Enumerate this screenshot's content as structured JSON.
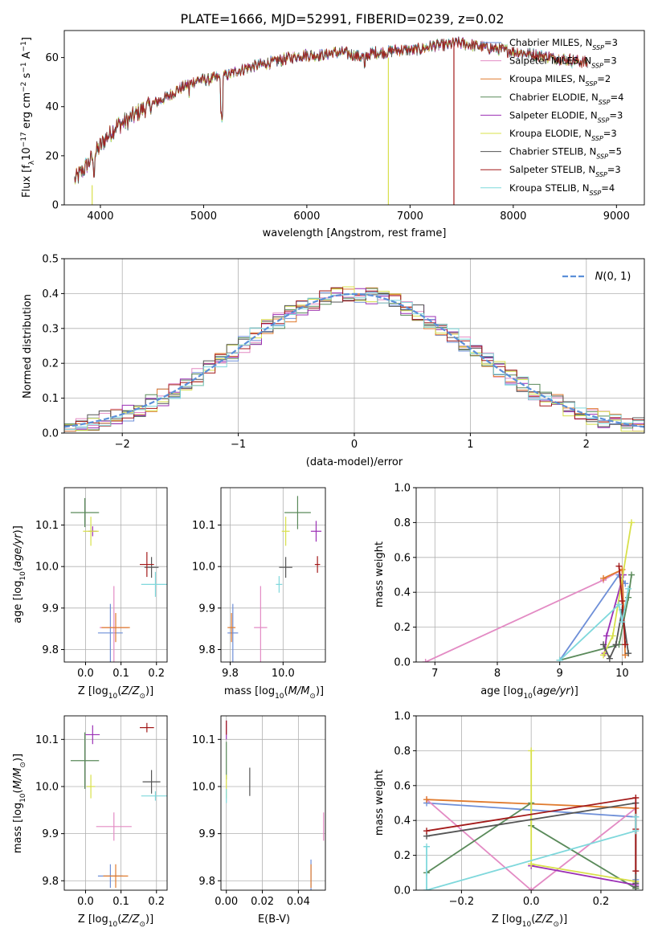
{
  "title": "PLATE=1666, MJD=52991, FIBERID=0239, z=0.02",
  "colors": {
    "Chabrier MILES": "#6e8fd8",
    "Salpeter MILES": "#e38bc4",
    "Kroupa MILES": "#e07b2e",
    "Chabrier ELODIE": "#5a8a5a",
    "Salpeter ELODIE": "#9b2fb5",
    "Kroupa ELODIE": "#d8e04a",
    "Chabrier STELIB": "#555555",
    "Salpeter STELIB": "#a31a1a",
    "Kroupa STELIB": "#7fd8dc",
    "normal_curve": "#5b8fd8",
    "grid": "#b0b0b0"
  },
  "chart_data": [
    {
      "type": "line",
      "id": "spectrum",
      "xlabel": "wavelength [Angstrom, rest frame]",
      "ylabel": "Flux [f_λ10^-17 erg cm^-2 s^-1 A^-1]",
      "xlim": [
        3650,
        9270
      ],
      "ylim": [
        0,
        71
      ],
      "xticks": [
        4000,
        5000,
        6000,
        7000,
        8000,
        9000
      ],
      "yticks": [
        0,
        20,
        40,
        60
      ],
      "continuum_x": [
        3750,
        3850,
        3950,
        4050,
        4150,
        4250,
        4350,
        4450,
        4550,
        4650,
        4750,
        4850,
        4950,
        5050,
        5150,
        5250,
        5350,
        5450,
        5550,
        5650,
        5750,
        5850,
        5950,
        6050,
        6150,
        6250,
        6350,
        6450,
        6550,
        6650,
        6750,
        6850,
        6950,
        7050,
        7150,
        7250,
        7350,
        7450
      ],
      "continuum_y": [
        10,
        15,
        21,
        27,
        32,
        34,
        37,
        40,
        42,
        44,
        47,
        49,
        51,
        51,
        52,
        53,
        55,
        56,
        57,
        58,
        59,
        60,
        61,
        61,
        61,
        62,
        62,
        61,
        60,
        62,
        62,
        63,
        63,
        63,
        64,
        65,
        65,
        66
      ],
      "drops": [
        {
          "series": "Kroupa ELODIE",
          "x": 3920,
          "from": 8,
          "to": 0
        },
        {
          "series": "Kroupa ELODIE",
          "x": 6790,
          "from": 60,
          "to": 0
        },
        {
          "series": "Salpeter STELIB",
          "x": 7425,
          "from": 66,
          "to": 0
        }
      ],
      "legend": {
        "placement": "right",
        "entries": [
          {
            "label": "Chabrier MILES, N",
            "sub": "SSP",
            "rest": "=3"
          },
          {
            "label": "Salpeter MILES, N",
            "sub": "SSP",
            "rest": "=3"
          },
          {
            "label": "Kroupa MILES, N",
            "sub": "SSP",
            "rest": "=2"
          },
          {
            "label": "Chabrier ELODIE, N",
            "sub": "SSP",
            "rest": "=4"
          },
          {
            "label": "Salpeter ELODIE, N",
            "sub": "SSP",
            "rest": "=3"
          },
          {
            "label": "Kroupa ELODIE, N",
            "sub": "SSP",
            "rest": "=3"
          },
          {
            "label": "Chabrier STELIB, N",
            "sub": "SSP",
            "rest": "=5"
          },
          {
            "label": "Salpeter STELIB, N",
            "sub": "SSP",
            "rest": "=3"
          },
          {
            "label": "Kroupa STELIB, N",
            "sub": "SSP",
            "rest": "=4"
          }
        ]
      }
    },
    {
      "type": "histogram",
      "id": "residuals",
      "xlabel": "(data-model)/error",
      "ylabel": "Normed distribution",
      "xlim": [
        -2.5,
        2.5
      ],
      "ylim": [
        0,
        0.5
      ],
      "xticks": [
        -2,
        -1,
        0,
        1,
        2
      ],
      "yticks": [
        0.0,
        0.1,
        0.2,
        0.3,
        0.4,
        0.5
      ],
      "legend": {
        "label": "N(0,1)",
        "placement": "upper right"
      },
      "bin_width": 0.1
    },
    {
      "type": "errorbar",
      "id": "age_vs_Z",
      "xlabel": "Z [log10(Z/Z⊙)]",
      "ylabel": "age [log10(age/yr)]",
      "xlim": [
        -0.06,
        0.23
      ],
      "ylim": [
        9.77,
        10.19
      ],
      "xticks": [
        0.0,
        0.1,
        0.2
      ],
      "yticks": [
        9.8,
        9.9,
        10.0,
        10.1
      ],
      "points": [
        {
          "series": "Chabrier MILES",
          "x": 0.07,
          "y": 9.84,
          "xerr": 0.035,
          "yerr": 0.07
        },
        {
          "series": "Salpeter MILES",
          "x": 0.08,
          "y": 9.853,
          "xerr": 0.04,
          "yerr": 0.1
        },
        {
          "series": "Kroupa MILES",
          "x": 0.085,
          "y": 9.853,
          "xerr": 0.04,
          "yerr": 0.035
        },
        {
          "series": "Chabrier ELODIE",
          "x": -0.002,
          "y": 10.13,
          "xerr": 0.04,
          "yerr": 0.035
        },
        {
          "series": "Salpeter ELODIE",
          "x": 0.02,
          "y": 10.085,
          "xerr": 0.012,
          "yerr": 0.012
        },
        {
          "series": "Kroupa ELODIE",
          "x": 0.015,
          "y": 10.085,
          "xerr": 0.022,
          "yerr": 0.035
        },
        {
          "series": "Chabrier STELIB",
          "x": 0.186,
          "y": 9.998,
          "xerr": 0.02,
          "yerr": 0.025
        },
        {
          "series": "Salpeter STELIB",
          "x": 0.173,
          "y": 10.005,
          "xerr": 0.02,
          "yerr": 0.03
        },
        {
          "series": "Kroupa STELIB",
          "x": 0.197,
          "y": 9.957,
          "xerr": 0.04,
          "yerr": 0.03
        }
      ]
    },
    {
      "type": "errorbar",
      "id": "age_vs_mass",
      "xlabel": "mass [log10(M/M⊙)]",
      "ylabel": "",
      "xlim": [
        9.765,
        10.16
      ],
      "ylim": [
        9.77,
        10.19
      ],
      "xticks": [
        9.8,
        10.0
      ],
      "yticks": [
        9.8,
        9.9,
        10.0,
        10.1
      ],
      "points": [
        {
          "series": "Chabrier MILES",
          "x": 9.81,
          "y": 9.84,
          "xerr": 0.02,
          "yerr": 0.07
        },
        {
          "series": "Salpeter MILES",
          "x": 9.915,
          "y": 9.853,
          "xerr": 0.025,
          "yerr": 0.1
        },
        {
          "series": "Kroupa MILES",
          "x": 9.805,
          "y": 9.853,
          "xerr": 0.015,
          "yerr": 0.035
        },
        {
          "series": "Chabrier ELODIE",
          "x": 10.055,
          "y": 10.13,
          "xerr": 0.05,
          "yerr": 0.04
        },
        {
          "series": "Salpeter ELODIE",
          "x": 10.125,
          "y": 10.085,
          "xerr": 0.02,
          "yerr": 0.025
        },
        {
          "series": "Kroupa ELODIE",
          "x": 10.01,
          "y": 10.085,
          "xerr": 0.015,
          "yerr": 0.035
        },
        {
          "series": "Chabrier STELIB",
          "x": 10.01,
          "y": 9.998,
          "xerr": 0.025,
          "yerr": 0.025
        },
        {
          "series": "Salpeter STELIB",
          "x": 10.13,
          "y": 10.005,
          "xerr": 0.01,
          "yerr": 0.02
        },
        {
          "series": "Kroupa STELIB",
          "x": 9.985,
          "y": 9.957,
          "xerr": 0.012,
          "yerr": 0.02
        }
      ]
    },
    {
      "type": "line",
      "id": "mass_weight_vs_age",
      "xlabel": "age [log10(age/yr)]",
      "ylabel": "mass weight",
      "xlim": [
        6.7,
        10.33
      ],
      "ylim": [
        0,
        1
      ],
      "xticks": [
        7,
        8,
        9,
        10
      ],
      "yticks": [
        0.0,
        0.2,
        0.4,
        0.6,
        0.8,
        1.0
      ],
      "series": [
        {
          "name": "Chabrier MILES",
          "x": [
            9.0,
            9.95,
            10.05
          ],
          "y": [
            0.01,
            0.5,
            0.45
          ]
        },
        {
          "name": "Salpeter MILES",
          "x": [
            6.85,
            9.7,
            10.0
          ],
          "y": [
            0.0,
            0.47,
            0.53
          ]
        },
        {
          "name": "Kroupa MILES",
          "x": [
            9.7,
            10.0,
            10.05
          ],
          "y": [
            0.48,
            0.53,
            0.04
          ]
        },
        {
          "name": "Chabrier ELODIE",
          "x": [
            9.0,
            9.95,
            10.1,
            10.15
          ],
          "y": [
            0.01,
            0.1,
            0.37,
            0.5
          ]
        },
        {
          "name": "Salpeter ELODIE",
          "x": [
            9.72,
            9.75,
            10.02
          ],
          "y": [
            0.05,
            0.15,
            0.5
          ]
        },
        {
          "name": "Kroupa ELODIE",
          "x": [
            9.7,
            9.85,
            10.15
          ],
          "y": [
            0.04,
            0.15,
            0.8
          ]
        },
        {
          "name": "Chabrier STELIB",
          "x": [
            9.7,
            9.8,
            9.9,
            10.0,
            10.1
          ],
          "y": [
            0.1,
            0.02,
            0.1,
            0.3,
            0.05
          ]
        },
        {
          "name": "Salpeter STELIB",
          "x": [
            9.95,
            10.0,
            10.05
          ],
          "y": [
            0.55,
            0.35,
            0.1
          ]
        },
        {
          "name": "Kroupa STELIB",
          "x": [
            9.0,
            9.95,
            10.0,
            10.1
          ],
          "y": [
            0.01,
            0.33,
            0.23,
            0.42
          ]
        }
      ]
    },
    {
      "type": "errorbar",
      "id": "mass_vs_Z",
      "xlabel": "Z [log10(Z/Z⊙)]",
      "ylabel": "mass [log10(M/M⊙)]",
      "xlim": [
        -0.06,
        0.23
      ],
      "ylim": [
        9.78,
        10.15
      ],
      "xticks": [
        0.0,
        0.1,
        0.2
      ],
      "yticks": [
        9.8,
        9.9,
        10.0,
        10.1
      ],
      "points": [
        {
          "series": "Chabrier MILES",
          "x": 0.07,
          "y": 9.81,
          "xerr": 0.035,
          "yerr": 0.025
        },
        {
          "series": "Salpeter MILES",
          "x": 0.08,
          "y": 9.915,
          "xerr": 0.05,
          "yerr": 0.03
        },
        {
          "series": "Kroupa MILES",
          "x": 0.085,
          "y": 9.81,
          "xerr": 0.035,
          "yerr": 0.025
        },
        {
          "series": "Chabrier ELODIE",
          "x": -0.002,
          "y": 10.055,
          "xerr": 0.04,
          "yerr": 0.06
        },
        {
          "series": "Salpeter ELODIE",
          "x": 0.02,
          "y": 10.11,
          "xerr": 0.02,
          "yerr": 0.02
        },
        {
          "series": "Kroupa ELODIE",
          "x": 0.015,
          "y": 10.0,
          "xerr": 0.012,
          "yerr": 0.025
        },
        {
          "series": "Chabrier STELIB",
          "x": 0.186,
          "y": 10.01,
          "xerr": 0.025,
          "yerr": 0.025
        },
        {
          "series": "Salpeter STELIB",
          "x": 0.173,
          "y": 10.125,
          "xerr": 0.02,
          "yerr": 0.01
        },
        {
          "series": "Kroupa STELIB",
          "x": 0.197,
          "y": 9.98,
          "xerr": 0.04,
          "yerr": 0.01
        }
      ]
    },
    {
      "type": "errorbar",
      "id": "mass_vs_ebv",
      "xlabel": "E(B-V)",
      "ylabel": "",
      "xlim": [
        -0.003,
        0.055
      ],
      "ylim": [
        9.78,
        10.15
      ],
      "xticks": [
        0.0,
        0.02,
        0.04
      ],
      "yticks": [
        9.8,
        9.9,
        10.0,
        10.1
      ],
      "points": [
        {
          "series": "Chabrier MILES",
          "x": 0.047,
          "y": 9.81,
          "xerr": 0.0,
          "yerr": 0.035
        },
        {
          "series": "Salpeter MILES",
          "x": 0.054,
          "y": 9.915,
          "xerr": 0.0,
          "yerr": 0.03
        },
        {
          "series": "Kroupa MILES",
          "x": 0.047,
          "y": 9.81,
          "xerr": 0.0,
          "yerr": 0.025
        },
        {
          "series": "Chabrier ELODIE",
          "x": 0.0,
          "y": 10.055,
          "xerr": 0.0,
          "yerr": 0.04
        },
        {
          "series": "Salpeter ELODIE",
          "x": 0.0,
          "y": 10.12,
          "xerr": 0.0,
          "yerr": 0.02
        },
        {
          "series": "Kroupa ELODIE",
          "x": 0.0,
          "y": 10.0,
          "xerr": 0.0,
          "yerr": 0.025
        },
        {
          "series": "Chabrier STELIB",
          "x": 0.013,
          "y": 10.01,
          "xerr": 0.0,
          "yerr": 0.03
        },
        {
          "series": "Salpeter STELIB",
          "x": 0.0,
          "y": 10.125,
          "xerr": 0.0,
          "yerr": 0.015
        },
        {
          "series": "Kroupa STELIB",
          "x": 0.0,
          "y": 9.98,
          "xerr": 0.0,
          "yerr": 0.015
        }
      ]
    },
    {
      "type": "line",
      "id": "mass_weight_vs_Z",
      "xlabel": "Z [log10(Z/Z⊙)]",
      "ylabel": "mass weight",
      "xlim": [
        -0.33,
        0.32
      ],
      "ylim": [
        0,
        1
      ],
      "xticks": [
        -0.2,
        0.0,
        0.2
      ],
      "yticks": [
        0.0,
        0.2,
        0.4,
        0.6,
        0.8,
        1.0
      ],
      "series": [
        {
          "name": "Chabrier MILES",
          "x": [
            -0.3,
            0.3,
            0.3
          ],
          "y": [
            0.5,
            0.42,
            0.06
          ]
        },
        {
          "name": "Salpeter MILES",
          "x": [
            -0.3,
            0.0,
            0.3
          ],
          "y": [
            0.52,
            0.0,
            0.47
          ]
        },
        {
          "name": "Kroupa MILES",
          "x": [
            -0.3,
            0.3,
            0.3
          ],
          "y": [
            0.52,
            0.47,
            0.01
          ]
        },
        {
          "name": "Chabrier ELODIE",
          "x": [
            -0.3,
            0.0,
            0.0,
            0.3,
            0.3
          ],
          "y": [
            0.1,
            0.5,
            0.37,
            0.01,
            0.01
          ]
        },
        {
          "name": "Salpeter ELODIE",
          "x": [
            0.0,
            0.3
          ],
          "y": [
            0.14,
            0.03
          ]
        },
        {
          "name": "Kroupa ELODIE",
          "x": [
            0.0,
            0.0,
            0.3,
            0.3
          ],
          "y": [
            0.8,
            0.15,
            0.05,
            0.05
          ]
        },
        {
          "name": "Chabrier STELIB",
          "x": [
            -0.3,
            0.3,
            0.3,
            0.3
          ],
          "y": [
            0.31,
            0.5,
            0.02,
            0.04
          ]
        },
        {
          "name": "Salpeter STELIB",
          "x": [
            -0.3,
            0.3,
            0.3,
            0.3
          ],
          "y": [
            0.34,
            0.53,
            0.11,
            0.35
          ]
        },
        {
          "name": "Kroupa STELIB",
          "x": [
            -0.3,
            -0.3,
            0.3,
            0.3
          ],
          "y": [
            0.25,
            0.0,
            0.34,
            0.42
          ]
        }
      ]
    }
  ]
}
